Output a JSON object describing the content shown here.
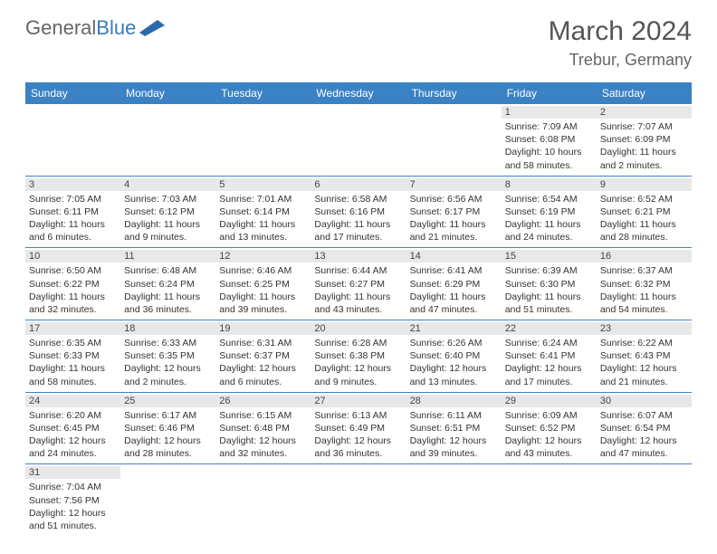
{
  "logo": {
    "text1": "General",
    "text2": "Blue"
  },
  "header": {
    "title": "March 2024",
    "location": "Trebur, Germany"
  },
  "colors": {
    "header_bg": "#3b82c4",
    "header_text": "#ffffff",
    "day_bg": "#e8e8e8",
    "rule": "#3b82c4"
  },
  "weekdays": [
    "Sunday",
    "Monday",
    "Tuesday",
    "Wednesday",
    "Thursday",
    "Friday",
    "Saturday"
  ],
  "weeks": [
    [
      {
        "blank": true
      },
      {
        "blank": true
      },
      {
        "blank": true
      },
      {
        "blank": true
      },
      {
        "blank": true
      },
      {
        "d": "1",
        "sr": "7:09 AM",
        "ss": "6:08 PM",
        "dl": "10 hours and 58 minutes."
      },
      {
        "d": "2",
        "sr": "7:07 AM",
        "ss": "6:09 PM",
        "dl": "11 hours and 2 minutes."
      }
    ],
    [
      {
        "d": "3",
        "sr": "7:05 AM",
        "ss": "6:11 PM",
        "dl": "11 hours and 6 minutes."
      },
      {
        "d": "4",
        "sr": "7:03 AM",
        "ss": "6:12 PM",
        "dl": "11 hours and 9 minutes."
      },
      {
        "d": "5",
        "sr": "7:01 AM",
        "ss": "6:14 PM",
        "dl": "11 hours and 13 minutes."
      },
      {
        "d": "6",
        "sr": "6:58 AM",
        "ss": "6:16 PM",
        "dl": "11 hours and 17 minutes."
      },
      {
        "d": "7",
        "sr": "6:56 AM",
        "ss": "6:17 PM",
        "dl": "11 hours and 21 minutes."
      },
      {
        "d": "8",
        "sr": "6:54 AM",
        "ss": "6:19 PM",
        "dl": "11 hours and 24 minutes."
      },
      {
        "d": "9",
        "sr": "6:52 AM",
        "ss": "6:21 PM",
        "dl": "11 hours and 28 minutes."
      }
    ],
    [
      {
        "d": "10",
        "sr": "6:50 AM",
        "ss": "6:22 PM",
        "dl": "11 hours and 32 minutes."
      },
      {
        "d": "11",
        "sr": "6:48 AM",
        "ss": "6:24 PM",
        "dl": "11 hours and 36 minutes."
      },
      {
        "d": "12",
        "sr": "6:46 AM",
        "ss": "6:25 PM",
        "dl": "11 hours and 39 minutes."
      },
      {
        "d": "13",
        "sr": "6:44 AM",
        "ss": "6:27 PM",
        "dl": "11 hours and 43 minutes."
      },
      {
        "d": "14",
        "sr": "6:41 AM",
        "ss": "6:29 PM",
        "dl": "11 hours and 47 minutes."
      },
      {
        "d": "15",
        "sr": "6:39 AM",
        "ss": "6:30 PM",
        "dl": "11 hours and 51 minutes."
      },
      {
        "d": "16",
        "sr": "6:37 AM",
        "ss": "6:32 PM",
        "dl": "11 hours and 54 minutes."
      }
    ],
    [
      {
        "d": "17",
        "sr": "6:35 AM",
        "ss": "6:33 PM",
        "dl": "11 hours and 58 minutes."
      },
      {
        "d": "18",
        "sr": "6:33 AM",
        "ss": "6:35 PM",
        "dl": "12 hours and 2 minutes."
      },
      {
        "d": "19",
        "sr": "6:31 AM",
        "ss": "6:37 PM",
        "dl": "12 hours and 6 minutes."
      },
      {
        "d": "20",
        "sr": "6:28 AM",
        "ss": "6:38 PM",
        "dl": "12 hours and 9 minutes."
      },
      {
        "d": "21",
        "sr": "6:26 AM",
        "ss": "6:40 PM",
        "dl": "12 hours and 13 minutes."
      },
      {
        "d": "22",
        "sr": "6:24 AM",
        "ss": "6:41 PM",
        "dl": "12 hours and 17 minutes."
      },
      {
        "d": "23",
        "sr": "6:22 AM",
        "ss": "6:43 PM",
        "dl": "12 hours and 21 minutes."
      }
    ],
    [
      {
        "d": "24",
        "sr": "6:20 AM",
        "ss": "6:45 PM",
        "dl": "12 hours and 24 minutes."
      },
      {
        "d": "25",
        "sr": "6:17 AM",
        "ss": "6:46 PM",
        "dl": "12 hours and 28 minutes."
      },
      {
        "d": "26",
        "sr": "6:15 AM",
        "ss": "6:48 PM",
        "dl": "12 hours and 32 minutes."
      },
      {
        "d": "27",
        "sr": "6:13 AM",
        "ss": "6:49 PM",
        "dl": "12 hours and 36 minutes."
      },
      {
        "d": "28",
        "sr": "6:11 AM",
        "ss": "6:51 PM",
        "dl": "12 hours and 39 minutes."
      },
      {
        "d": "29",
        "sr": "6:09 AM",
        "ss": "6:52 PM",
        "dl": "12 hours and 43 minutes."
      },
      {
        "d": "30",
        "sr": "6:07 AM",
        "ss": "6:54 PM",
        "dl": "12 hours and 47 minutes."
      }
    ],
    [
      {
        "d": "31",
        "sr": "7:04 AM",
        "ss": "7:56 PM",
        "dl": "12 hours and 51 minutes."
      },
      {
        "blank": true
      },
      {
        "blank": true
      },
      {
        "blank": true
      },
      {
        "blank": true
      },
      {
        "blank": true
      },
      {
        "blank": true
      }
    ]
  ],
  "labels": {
    "sunrise": "Sunrise:",
    "sunset": "Sunset:",
    "daylight": "Daylight:"
  }
}
